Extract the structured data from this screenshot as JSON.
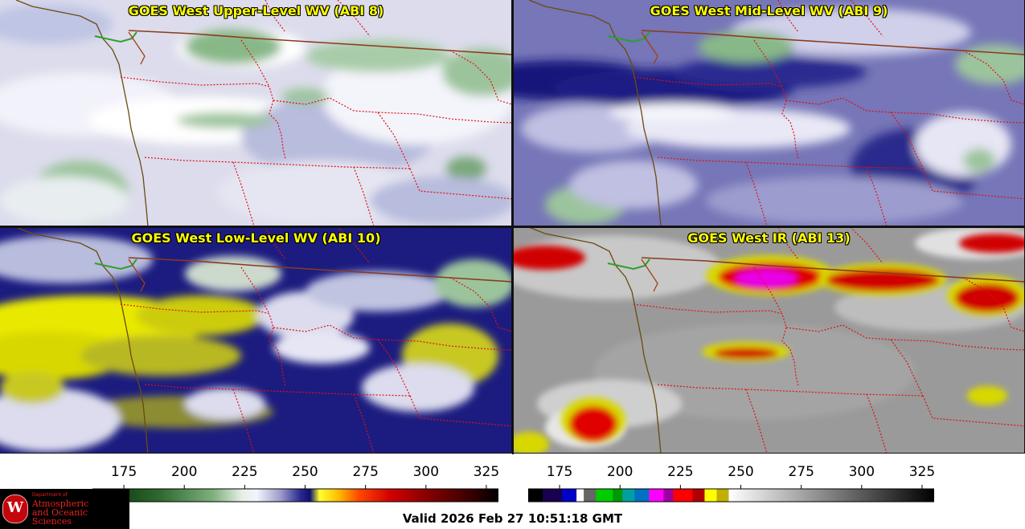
{
  "panels": [
    {
      "title": "GOES West Upper-Level WV (ABI 8)",
      "style": "wv-upper"
    },
    {
      "title": "GOES West Mid-Level WV (ABI 9)",
      "style": "wv-mid"
    },
    {
      "title": "GOES West Low-Level WV (ABI 10)",
      "style": "wv-low"
    },
    {
      "title": "GOES West IR (ABI 13)",
      "style": "ir"
    }
  ],
  "colorbars": {
    "wv": {
      "ticks": [
        "175",
        "200",
        "225",
        "250",
        "275",
        "300",
        "325"
      ],
      "range": [
        162,
        330
      ],
      "stops": [
        {
          "v": 162,
          "c": "#ffffff"
        },
        {
          "v": 170,
          "c": "#0f3a0f"
        },
        {
          "v": 190,
          "c": "#2f6a2f"
        },
        {
          "v": 212,
          "c": "#7eb07e"
        },
        {
          "v": 224,
          "c": "#e6f0e6"
        },
        {
          "v": 230,
          "c": "#f4f4fb"
        },
        {
          "v": 240,
          "c": "#9a9acb"
        },
        {
          "v": 248,
          "c": "#2b2b8f"
        },
        {
          "v": 252,
          "c": "#101070"
        },
        {
          "v": 256,
          "c": "#ffff30"
        },
        {
          "v": 264,
          "c": "#ffbb00"
        },
        {
          "v": 272,
          "c": "#ff4a00"
        },
        {
          "v": 285,
          "c": "#d40000"
        },
        {
          "v": 300,
          "c": "#8a0000"
        },
        {
          "v": 318,
          "c": "#3a0000"
        },
        {
          "v": 330,
          "c": "#000000"
        }
      ]
    },
    "ir": {
      "ticks": [
        "175",
        "200",
        "225",
        "250",
        "275",
        "300",
        "325"
      ],
      "range": [
        162,
        330
      ],
      "bands": [
        {
          "from": 162,
          "to": 168,
          "c": "#000000"
        },
        {
          "from": 168,
          "to": 176,
          "c": "#1a0050"
        },
        {
          "from": 176,
          "to": 182,
          "c": "#0000c8"
        },
        {
          "from": 182,
          "to": 185,
          "c": "#ffffff"
        },
        {
          "from": 185,
          "to": 190,
          "c": "#666666"
        },
        {
          "from": 190,
          "to": 197,
          "c": "#00cc00"
        },
        {
          "from": 197,
          "to": 201,
          "c": "#009900"
        },
        {
          "from": 201,
          "to": 206,
          "c": "#00a0a0"
        },
        {
          "from": 206,
          "to": 212,
          "c": "#0070c0"
        },
        {
          "from": 212,
          "to": 218,
          "c": "#ff00ff"
        },
        {
          "from": 218,
          "to": 222,
          "c": "#a000a0"
        },
        {
          "from": 222,
          "to": 230,
          "c": "#ff0000"
        },
        {
          "from": 230,
          "to": 235,
          "c": "#b00000"
        },
        {
          "from": 235,
          "to": 240,
          "c": "#ffff00"
        },
        {
          "from": 240,
          "to": 245,
          "c": "#c0b000"
        },
        {
          "from": 245,
          "to": 330,
          "grad": [
            "#ffffff",
            "#000000"
          ]
        }
      ]
    }
  },
  "valid_time": "Valid 2026 Feb 27 10:51:18 GMT",
  "logo": {
    "dept": "Department of",
    "line1": "Atmospheric",
    "line2": "and Oceanic Sciences",
    "seal_letter": "W"
  },
  "colors": {
    "title_text": "#ffff00",
    "state_borders": "#e01010",
    "intl_border": "#8b3a1a",
    "coastline": "#6b4a10"
  }
}
